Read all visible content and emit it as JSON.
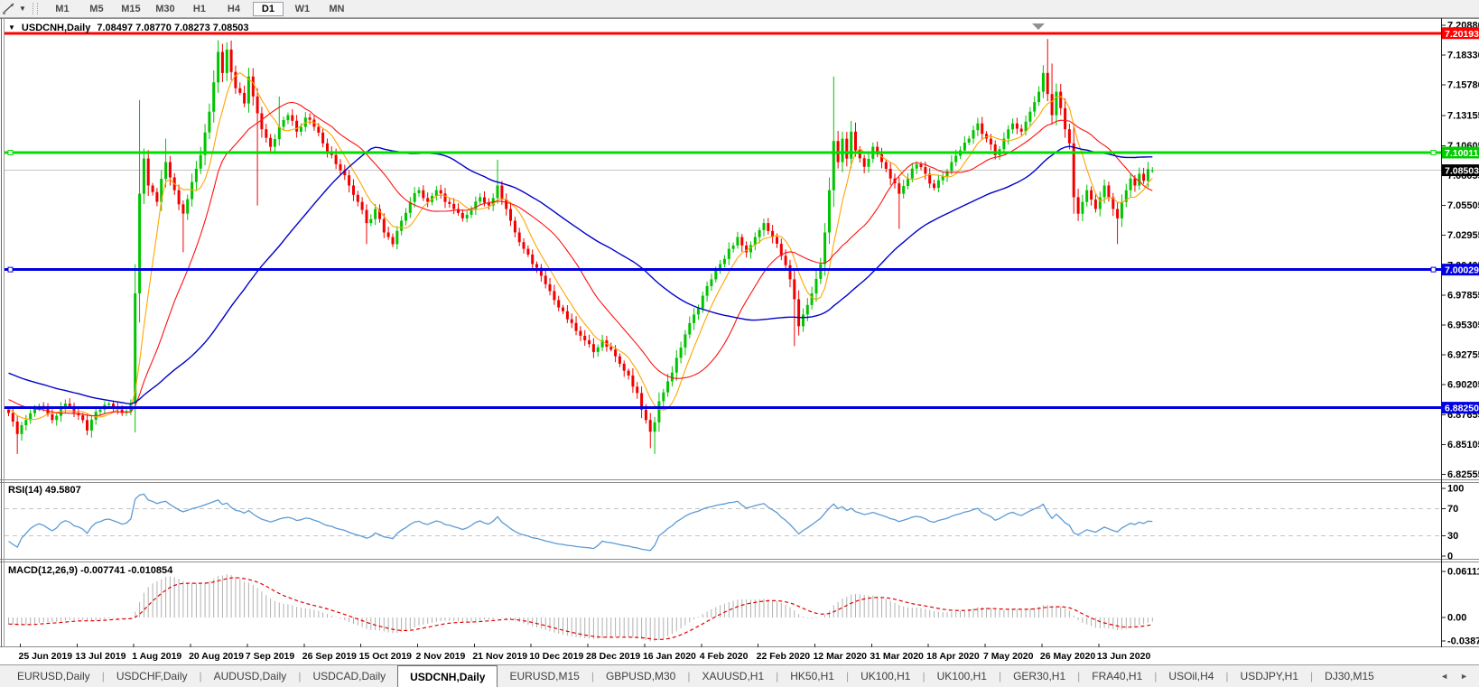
{
  "toolbar": {
    "timeframes": [
      "M1",
      "M5",
      "M15",
      "M30",
      "H1",
      "H4",
      "D1",
      "W1",
      "MN"
    ],
    "active_timeframe": "D1"
  },
  "chart": {
    "title_symbol": "USDCNH,Daily",
    "title_ohlc": "7.08497 7.08770 7.08273 7.08503",
    "collapse_triangle": "▼",
    "price_axis_labels": [
      "7.20880",
      "7.18330",
      "7.15780",
      "7.13155",
      "7.10605",
      "7.08055",
      "7.05505",
      "7.02955",
      "7.00405",
      "6.97855",
      "6.95305",
      "6.92755",
      "6.90205",
      "6.87655",
      "6.85105",
      "6.82555"
    ],
    "horizontal_lines": [
      {
        "price": 7.20193,
        "label": "7.20193",
        "color": "#ff0000",
        "handles": false
      },
      {
        "price": 7.10011,
        "label": "7.10011",
        "color": "#00dd00",
        "handles": true
      },
      {
        "price": 7.00029,
        "label": "7.00029",
        "color": "#0000e0",
        "handles": true
      },
      {
        "price": 6.8825,
        "label": "6.88250",
        "color": "#0000e0",
        "handles": false
      }
    ],
    "current_price": {
      "price": 7.08503,
      "label": "7.08503"
    },
    "date_labels": [
      "25 Jun 2019",
      "13 Jul 2019",
      "1 Aug 2019",
      "20 Aug 2019",
      "7 Sep 2019",
      "26 Sep 2019",
      "15 Oct 2019",
      "2 Nov 2019",
      "21 Nov 2019",
      "10 Dec 2019",
      "28 Dec 2019",
      "16 Jan 2020",
      "4 Feb 2020",
      "22 Feb 2020",
      "12 Mar 2020",
      "31 Mar 2020",
      "18 Apr 2020",
      "7 May 2020",
      "26 May 2020",
      "13 Jun 2020"
    ]
  },
  "rsi": {
    "label": "RSI(14) 49.5807",
    "period": 14,
    "axis_labels": [
      "100",
      "70",
      "30",
      "0"
    ],
    "level_lines": [
      70,
      30
    ]
  },
  "macd": {
    "label": "MACD(12,26,9) -0.007741 -0.010854",
    "fast": 12,
    "slow": 26,
    "signal": 9,
    "axis_top": "0.061119",
    "axis_zero": "0.00",
    "axis_bottom": "-0.038777"
  },
  "tabs": {
    "items": [
      "EURUSD,Daily",
      "USDCHF,Daily",
      "AUDUSD,Daily",
      "USDCAD,Daily",
      "USDCNH,Daily",
      "EURUSD,M15",
      "GBPUSD,M30",
      "XAUUSD,H1",
      "HK50,H1",
      "UK100,H1",
      "UK100,H1",
      "GER30,H1",
      "FRA40,H1",
      "USOil,H4",
      "USDJPY,H1",
      "DJ30,M15"
    ],
    "active": "USDCNH,Daily",
    "nav_left": "◄",
    "nav_right": "►"
  },
  "colors": {
    "bull": "#00c400",
    "bear": "#f20000",
    "line_red": "#ff0000",
    "line_green": "#00e400",
    "line_blue": "#0000f0",
    "current_price_line": "#c4c4c4",
    "current_price_box": "#000000",
    "rsi_line": "#5b9bd5",
    "rsi_levels": "#c4c4c4",
    "macd_hist": "#b0b0b0",
    "macd_signal": "#e00000",
    "ma_fast": "#ffa500",
    "ma_mid": "#ff1010",
    "ma_slow": "#0000cc",
    "shift_marker": "#909090"
  },
  "chart_data": {
    "type": "candlestick",
    "symbol": "USDCNH",
    "timeframe": "Daily",
    "candle_count": 263,
    "price_range_top": 7.2235,
    "price_range_bottom": 6.818,
    "prehistory": {
      "count": 60,
      "start": 6.955,
      "end": 6.878
    },
    "moving_averages": [
      {
        "period": 7,
        "color": "#ffa500",
        "width": 1.1
      },
      {
        "period": 20,
        "color": "#ff1010",
        "width": 1.1
      },
      {
        "period": 55,
        "color": "#0000cc",
        "width": 1.4
      }
    ],
    "candle_anchors": [
      [
        0,
        6.878
      ],
      [
        2,
        6.86
      ],
      [
        4,
        6.872
      ],
      [
        7,
        6.884
      ],
      [
        10,
        6.872
      ],
      [
        13,
        6.886
      ],
      [
        16,
        6.876
      ],
      [
        18,
        6.863
      ],
      [
        20,
        6.879
      ],
      [
        23,
        6.886
      ],
      [
        26,
        6.878
      ],
      [
        28,
        6.886
      ],
      [
        29,
        6.98
      ],
      [
        30,
        7.065
      ],
      [
        31,
        7.095
      ],
      [
        32,
        7.072
      ],
      [
        34,
        7.058
      ],
      [
        36,
        7.092
      ],
      [
        38,
        7.068
      ],
      [
        40,
        7.048
      ],
      [
        42,
        7.075
      ],
      [
        44,
        7.098
      ],
      [
        46,
        7.135
      ],
      [
        47,
        7.16
      ],
      [
        48,
        7.186
      ],
      [
        49,
        7.168
      ],
      [
        50,
        7.188
      ],
      [
        52,
        7.155
      ],
      [
        54,
        7.142
      ],
      [
        55,
        7.165
      ],
      [
        56,
        7.148
      ],
      [
        58,
        7.12
      ],
      [
        60,
        7.105
      ],
      [
        62,
        7.122
      ],
      [
        64,
        7.132
      ],
      [
        66,
        7.118
      ],
      [
        68,
        7.13
      ],
      [
        70,
        7.122
      ],
      [
        72,
        7.108
      ],
      [
        74,
        7.098
      ],
      [
        76,
        7.085
      ],
      [
        78,
        7.072
      ],
      [
        80,
        7.058
      ],
      [
        82,
        7.04
      ],
      [
        84,
        7.052
      ],
      [
        86,
        7.032
      ],
      [
        88,
        7.022
      ],
      [
        90,
        7.042
      ],
      [
        92,
        7.058
      ],
      [
        94,
        7.068
      ],
      [
        96,
        7.058
      ],
      [
        98,
        7.068
      ],
      [
        100,
        7.058
      ],
      [
        102,
        7.052
      ],
      [
        104,
        7.044
      ],
      [
        106,
        7.052
      ],
      [
        108,
        7.062
      ],
      [
        110,
        7.055
      ],
      [
        112,
        7.072
      ],
      [
        114,
        7.052
      ],
      [
        116,
        7.032
      ],
      [
        118,
        7.018
      ],
      [
        120,
        7.005
      ],
      [
        122,
        6.995
      ],
      [
        124,
        6.982
      ],
      [
        126,
        6.968
      ],
      [
        128,
        6.958
      ],
      [
        130,
        6.948
      ],
      [
        132,
        6.94
      ],
      [
        134,
        6.93
      ],
      [
        136,
        6.94
      ],
      [
        138,
        6.932
      ],
      [
        140,
        6.92
      ],
      [
        142,
        6.91
      ],
      [
        144,
        6.895
      ],
      [
        146,
        6.872
      ],
      [
        147,
        6.862
      ],
      [
        148,
        6.87
      ],
      [
        149,
        6.888
      ],
      [
        151,
        6.905
      ],
      [
        153,
        6.925
      ],
      [
        155,
        6.945
      ],
      [
        157,
        6.962
      ],
      [
        159,
        6.978
      ],
      [
        161,
        6.992
      ],
      [
        163,
        7.005
      ],
      [
        165,
        7.018
      ],
      [
        167,
        7.028
      ],
      [
        169,
        7.015
      ],
      [
        171,
        7.028
      ],
      [
        173,
        7.04
      ],
      [
        175,
        7.028
      ],
      [
        177,
        7.012
      ],
      [
        179,
        6.992
      ],
      [
        180,
        6.975
      ],
      [
        181,
        6.952
      ],
      [
        182,
        6.962
      ],
      [
        184,
        6.98
      ],
      [
        186,
        7.005
      ],
      [
        187,
        7.032
      ],
      [
        188,
        7.068
      ],
      [
        189,
        7.11
      ],
      [
        190,
        7.092
      ],
      [
        191,
        7.112
      ],
      [
        192,
        7.095
      ],
      [
        193,
        7.118
      ],
      [
        194,
        7.102
      ],
      [
        196,
        7.088
      ],
      [
        198,
        7.105
      ],
      [
        200,
        7.092
      ],
      [
        202,
        7.078
      ],
      [
        204,
        7.065
      ],
      [
        206,
        7.078
      ],
      [
        208,
        7.09
      ],
      [
        210,
        7.082
      ],
      [
        212,
        7.07
      ],
      [
        214,
        7.08
      ],
      [
        216,
        7.092
      ],
      [
        218,
        7.102
      ],
      [
        220,
        7.112
      ],
      [
        222,
        7.125
      ],
      [
        224,
        7.112
      ],
      [
        226,
        7.098
      ],
      [
        228,
        7.112
      ],
      [
        230,
        7.125
      ],
      [
        232,
        7.118
      ],
      [
        234,
        7.135
      ],
      [
        236,
        7.152
      ],
      [
        237,
        7.168
      ],
      [
        238,
        7.15
      ],
      [
        239,
        7.132
      ],
      [
        240,
        7.152
      ],
      [
        241,
        7.138
      ],
      [
        242,
        7.12
      ],
      [
        243,
        7.108
      ],
      [
        244,
        7.062
      ],
      [
        245,
        7.048
      ],
      [
        246,
        7.058
      ],
      [
        247,
        7.068
      ],
      [
        248,
        7.06
      ],
      [
        249,
        7.052
      ],
      [
        250,
        7.062
      ],
      [
        251,
        7.072
      ],
      [
        252,
        7.062
      ],
      [
        253,
        7.052
      ],
      [
        254,
        7.044
      ],
      [
        255,
        7.058
      ],
      [
        256,
        7.068
      ],
      [
        257,
        7.078
      ],
      [
        258,
        7.072
      ],
      [
        259,
        7.082
      ],
      [
        260,
        7.076
      ],
      [
        261,
        7.086
      ],
      [
        262,
        7.08503
      ]
    ],
    "spikes": [
      {
        "i": 2,
        "low": 6.843
      },
      {
        "i": 30,
        "high": 7.145
      },
      {
        "i": 36,
        "high": 7.112
      },
      {
        "i": 40,
        "low": 7.015
      },
      {
        "i": 48,
        "high": 7.196
      },
      {
        "i": 50,
        "high": 7.194
      },
      {
        "i": 57,
        "low": 7.055
      },
      {
        "i": 62,
        "high": 7.148
      },
      {
        "i": 82,
        "low": 7.022
      },
      {
        "i": 112,
        "high": 7.094
      },
      {
        "i": 147,
        "low": 6.848
      },
      {
        "i": 148,
        "low": 6.843
      },
      {
        "i": 180,
        "low": 6.935
      },
      {
        "i": 189,
        "high": 7.165
      },
      {
        "i": 204,
        "low": 7.035
      },
      {
        "i": 238,
        "high": 7.197
      },
      {
        "i": 239,
        "high": 7.176
      },
      {
        "i": 244,
        "low": 7.048
      },
      {
        "i": 254,
        "low": 7.022
      }
    ],
    "last_candle": {
      "o": 7.08497,
      "h": 7.0877,
      "l": 7.08273,
      "c": 7.08503
    }
  }
}
